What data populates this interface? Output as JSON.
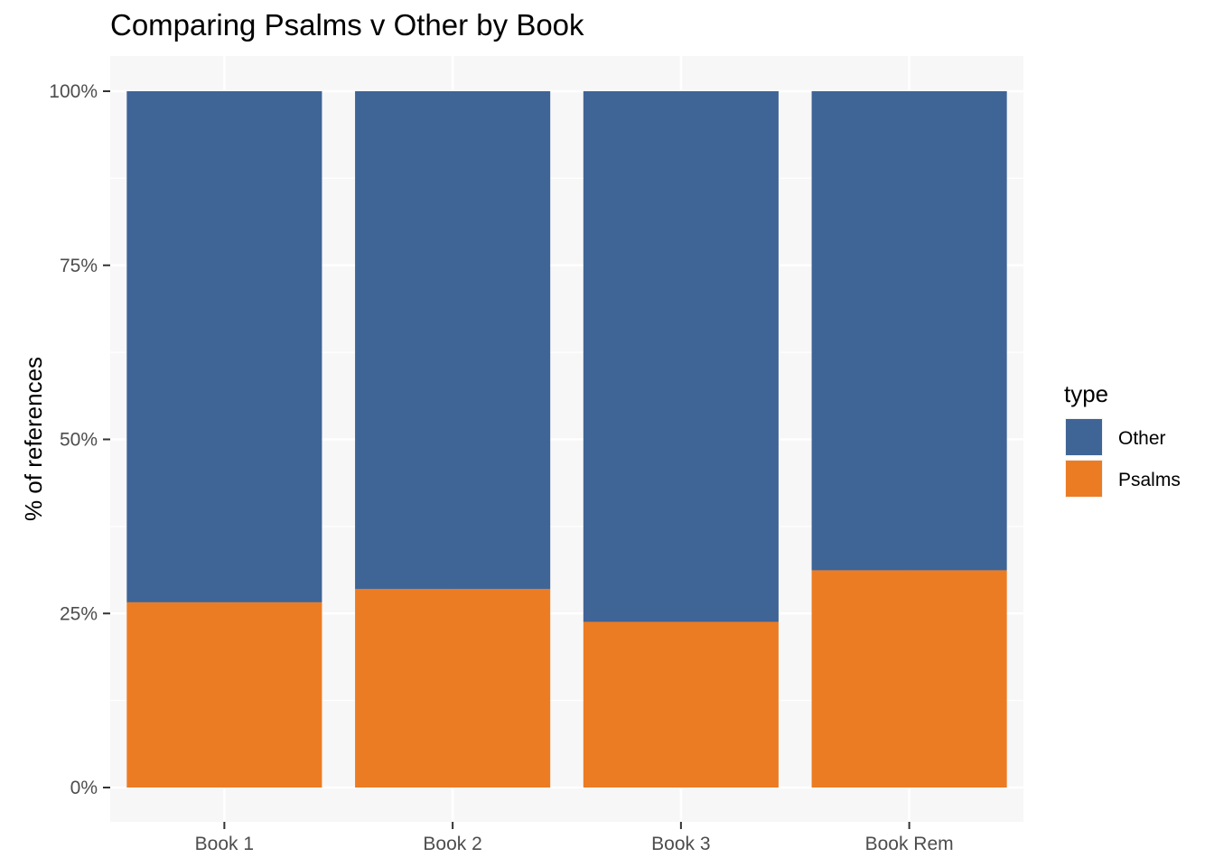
{
  "chart_data": {
    "type": "bar",
    "stacked": true,
    "title": "Comparing Psalms v Other by Book",
    "xlabel": "",
    "ylabel": "% of references",
    "categories": [
      "Book 1",
      "Book 2",
      "Book 3",
      "Book Rem"
    ],
    "ylim": [
      0,
      1
    ],
    "yticks": [
      0,
      0.25,
      0.5,
      0.75,
      1
    ],
    "ytick_labels": [
      "0%",
      "25%",
      "50%",
      "75%",
      "100%"
    ],
    "grid": true,
    "legend": {
      "title": "type",
      "position": "right",
      "entries": [
        "Other",
        "Psalms"
      ]
    },
    "series": [
      {
        "name": "Psalms",
        "color": "#ec7c24",
        "values": [
          0.266,
          0.285,
          0.238,
          0.312
        ]
      },
      {
        "name": "Other",
        "color": "#3f6496",
        "values": [
          0.734,
          0.715,
          0.762,
          0.688
        ]
      }
    ],
    "panel_background": "#f7f7f7",
    "gridline_color": "#ffffff"
  }
}
